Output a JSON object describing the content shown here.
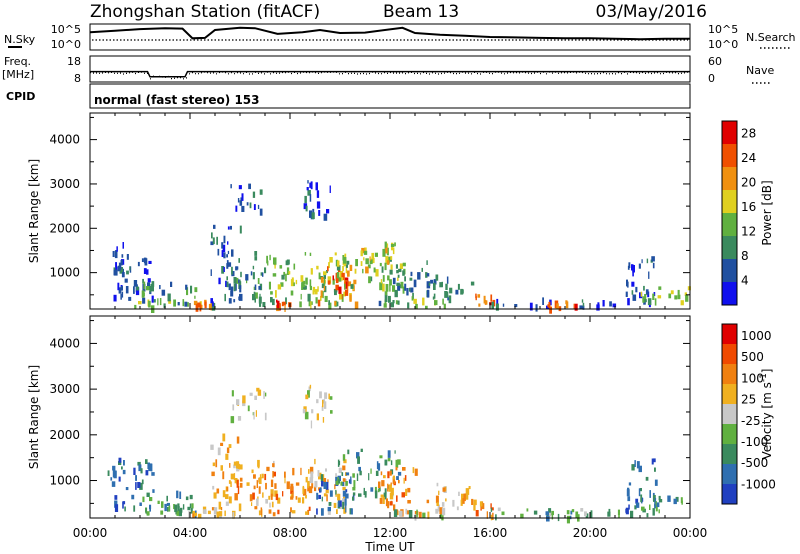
{
  "header": {
    "station": "Zhongshan Station (fitACF)",
    "beam": "Beam 13",
    "date": "03/May/2016"
  },
  "nsky_panel": {
    "left_label": "N.Sky",
    "right_label": "N.Search",
    "left_ticks": [
      "10^5",
      "10^0"
    ],
    "right_ticks": [
      "10^5",
      "10^0"
    ]
  },
  "freq_panel": {
    "left_label_1": "Freq.",
    "left_label_2": "[MHz]",
    "right_label": "Nave",
    "left_ticks": [
      "18",
      "8"
    ],
    "right_ticks": [
      "60",
      "0"
    ]
  },
  "cpid_panel": {
    "label": "CPID",
    "text": "normal (fast stereo) 153"
  },
  "colors": {
    "power_scale": [
      "#1010ee",
      "#2050a0",
      "#3a8a5e",
      "#60b040",
      "#e0d020",
      "#f09010",
      "#f05000",
      "#e00000"
    ],
    "velocity_scale": [
      "#2040c0",
      "#2f6fb0",
      "#3a8a5e",
      "#60b040",
      "#c8c8c8",
      "#f0b020",
      "#f08010",
      "#f04a00",
      "#e00000"
    ]
  },
  "chart_data": [
    {
      "type": "heatmap",
      "name": "power-panel",
      "ylabel": "Slant Range [km]",
      "ylim": [
        180,
        4600
      ],
      "yticks": [
        "1000",
        "2000",
        "3000",
        "4000"
      ],
      "xlim_hours": [
        0,
        24
      ],
      "colorbar_label": "Power [dB]",
      "colorbar_range": [
        0,
        30
      ],
      "colorbar_ticks": [
        "4",
        "8",
        "12",
        "16",
        "20",
        "24",
        "28"
      ],
      "blobs": [
        {
          "t": [
            0.7,
            2.5
          ],
          "r": [
            400,
            1500
          ],
          "c": 1
        },
        {
          "t": [
            0.9,
            1.4
          ],
          "r": [
            900,
            1700
          ],
          "c": 1
        },
        {
          "t": [
            1.5,
            4.0
          ],
          "r": [
            250,
            450
          ],
          "c": 3
        },
        {
          "t": [
            2.0,
            4.2
          ],
          "r": [
            300,
            800
          ],
          "c": 2
        },
        {
          "t": [
            3.8,
            5.0
          ],
          "r": [
            250,
            420
          ],
          "c": 5
        },
        {
          "t": [
            4.8,
            6.0
          ],
          "r": [
            300,
            2100
          ],
          "c": 1
        },
        {
          "t": [
            5.4,
            7.0
          ],
          "r": [
            700,
            1200
          ],
          "c": 2
        },
        {
          "t": [
            5.6,
            6.8
          ],
          "r": [
            2400,
            3050
          ],
          "c": 1
        },
        {
          "t": [
            6.4,
            7.4
          ],
          "r": [
            300,
            1500
          ],
          "c": 2
        },
        {
          "t": [
            7.2,
            8.8
          ],
          "r": [
            350,
            1300
          ],
          "c": 3
        },
        {
          "t": [
            7.4,
            8.2
          ],
          "r": [
            250,
            420
          ],
          "c": 6
        },
        {
          "t": [
            8.4,
            10.2
          ],
          "r": [
            300,
            1500
          ],
          "c": 3
        },
        {
          "t": [
            8.5,
            9.6
          ],
          "r": [
            2200,
            3100
          ],
          "c": 1
        },
        {
          "t": [
            9.0,
            10.6
          ],
          "r": [
            300,
            1200
          ],
          "c": 5
        },
        {
          "t": [
            9.5,
            10.4
          ],
          "r": [
            600,
            1000
          ],
          "c": 6
        },
        {
          "t": [
            9.8,
            12.4
          ],
          "r": [
            700,
            1700
          ],
          "c": 3
        },
        {
          "t": [
            10.8,
            12.0
          ],
          "r": [
            1100,
            1600
          ],
          "c": 4
        },
        {
          "t": [
            11.5,
            13.5
          ],
          "r": [
            300,
            1300
          ],
          "c": 2
        },
        {
          "t": [
            12.0,
            14.2
          ],
          "r": [
            250,
            450
          ],
          "c": 3
        },
        {
          "t": [
            13.4,
            15.4
          ],
          "r": [
            400,
            1000
          ],
          "c": 2
        },
        {
          "t": [
            15.4,
            16.2
          ],
          "r": [
            250,
            550
          ],
          "c": 6
        },
        {
          "t": [
            16.0,
            18.5
          ],
          "r": [
            250,
            450
          ],
          "c": 1
        },
        {
          "t": [
            18.2,
            19.4
          ],
          "r": [
            220,
            380
          ],
          "c": 6
        },
        {
          "t": [
            19.4,
            21.2
          ],
          "r": [
            250,
            400
          ],
          "c": 1
        },
        {
          "t": [
            21.4,
            22.6
          ],
          "r": [
            300,
            1500
          ],
          "c": 1
        },
        {
          "t": [
            22.0,
            24.0
          ],
          "r": [
            280,
            700
          ],
          "c": 3
        }
      ]
    },
    {
      "type": "heatmap",
      "name": "velocity-panel",
      "ylabel": "Slant Range [km]",
      "ylim": [
        180,
        4600
      ],
      "yticks": [
        "1000",
        "2000",
        "3000",
        "4000"
      ],
      "xlim_hours": [
        0,
        24
      ],
      "xticks": [
        "00:00",
        "04:00",
        "08:00",
        "12:00",
        "16:00",
        "20:00",
        "00:00"
      ],
      "xlabel": "Time UT",
      "colorbar_label": "Velocity [m s^-1]",
      "colorbar_ticks": [
        "1000",
        "500",
        "100",
        "25",
        "-25",
        "-100",
        "-500",
        "-1000"
      ],
      "blobs": [
        {
          "t": [
            0.7,
            2.5
          ],
          "r": [
            400,
            1500
          ],
          "c": 1
        },
        {
          "t": [
            1.5,
            4.0
          ],
          "r": [
            250,
            450
          ],
          "c": 3
        },
        {
          "t": [
            2.0,
            4.2
          ],
          "r": [
            300,
            800
          ],
          "c": 2
        },
        {
          "t": [
            3.8,
            5.2
          ],
          "r": [
            250,
            450
          ],
          "c": 5
        },
        {
          "t": [
            4.8,
            6.0
          ],
          "r": [
            300,
            2100
          ],
          "c": 5
        },
        {
          "t": [
            5.4,
            7.0
          ],
          "r": [
            700,
            1200
          ],
          "c": 6
        },
        {
          "t": [
            5.6,
            7.0
          ],
          "r": [
            2400,
            3050
          ],
          "c": 4
        },
        {
          "t": [
            6.4,
            7.4
          ],
          "r": [
            300,
            1500
          ],
          "c": 5
        },
        {
          "t": [
            7.2,
            8.8
          ],
          "r": [
            350,
            1300
          ],
          "c": 6
        },
        {
          "t": [
            8.4,
            10.2
          ],
          "r": [
            300,
            1500
          ],
          "c": 5
        },
        {
          "t": [
            8.5,
            9.6
          ],
          "r": [
            2200,
            3100
          ],
          "c": 4
        },
        {
          "t": [
            9.0,
            10.6
          ],
          "r": [
            300,
            1200
          ],
          "c": 1
        },
        {
          "t": [
            9.8,
            12.4
          ],
          "r": [
            700,
            1700
          ],
          "c": 2
        },
        {
          "t": [
            11.5,
            13.5
          ],
          "r": [
            300,
            1300
          ],
          "c": 6
        },
        {
          "t": [
            12.0,
            14.2
          ],
          "r": [
            250,
            450
          ],
          "c": 3
        },
        {
          "t": [
            13.4,
            15.4
          ],
          "r": [
            400,
            1000
          ],
          "c": 5
        },
        {
          "t": [
            15.4,
            16.2
          ],
          "r": [
            250,
            550
          ],
          "c": 6
        },
        {
          "t": [
            16.0,
            18.5
          ],
          "r": [
            250,
            450
          ],
          "c": 3
        },
        {
          "t": [
            18.2,
            19.4
          ],
          "r": [
            220,
            380
          ],
          "c": 2
        },
        {
          "t": [
            19.4,
            21.2
          ],
          "r": [
            250,
            400
          ],
          "c": 3
        },
        {
          "t": [
            21.4,
            22.6
          ],
          "r": [
            300,
            1500
          ],
          "c": 1
        },
        {
          "t": [
            22.0,
            24.0
          ],
          "r": [
            280,
            700
          ],
          "c": 2
        }
      ]
    },
    {
      "type": "line",
      "name": "nsky-trace",
      "x_hours": [
        0,
        1,
        2,
        3,
        3.7,
        4.1,
        4.6,
        5,
        6,
        6.6,
        7.5,
        8.5,
        9.2,
        10,
        11,
        12.5,
        13,
        14,
        15,
        16,
        17,
        18,
        19,
        20,
        21,
        22,
        23,
        24
      ],
      "y_log10": [
        3.6,
        3.9,
        4.3,
        4.5,
        4.4,
        2.2,
        2.3,
        4.1,
        4.6,
        4.5,
        3.2,
        3.6,
        4.1,
        3.4,
        3.5,
        4.6,
        3.4,
        3.0,
        2.8,
        2.5,
        2.4,
        2.3,
        2.2,
        2.2,
        2.1,
        2.0,
        2.1,
        2.1
      ]
    },
    {
      "type": "line",
      "name": "freq-trace",
      "x_hours": [
        0,
        2.3,
        2.4,
        3.8,
        3.9,
        24
      ],
      "y_mhz": [
        12,
        12,
        10,
        10,
        12,
        12
      ]
    }
  ]
}
